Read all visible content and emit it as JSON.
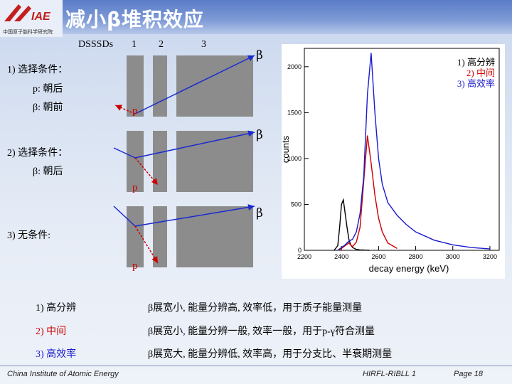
{
  "header": {
    "title": "减小β堆积效应",
    "org_text": "中国原子能科学研究院"
  },
  "detectors": {
    "label": "DSSSDs",
    "numbers": [
      "1",
      "2",
      "3"
    ]
  },
  "conditions": {
    "c1_title": "1) 选择条件：",
    "c1_p": "p: 朝后",
    "c1_beta": "β: 朝前",
    "c2_title": "2) 选择条件：",
    "c2_beta": "β: 朝后",
    "c3_title": "3) 无条件:"
  },
  "particles": {
    "beta": "β",
    "p": "p"
  },
  "chart_data": {
    "type": "line",
    "xlabel": "decay energy (keV)",
    "ylabel": "counts",
    "xlim": [
      2200,
      3250
    ],
    "ylim": [
      0,
      2200
    ],
    "xticks": [
      "2200",
      "2400",
      "2600",
      "2800",
      "3000",
      "3200"
    ],
    "yticks": [
      "0",
      "500",
      "1000",
      "1500",
      "2000"
    ],
    "legend": [
      "1) 高分辨",
      "2) 中间",
      "3) 高效率"
    ],
    "legend_colors": [
      "#000000",
      "#cc0000",
      "#1a1acc"
    ],
    "series": [
      {
        "name": "1) 高分辨",
        "color": "#000000",
        "x": [
          2360,
          2380,
          2390,
          2400,
          2410,
          2420,
          2430,
          2440,
          2450,
          2460,
          2480,
          2500,
          2550
        ],
        "y": [
          0,
          50,
          250,
          500,
          550,
          400,
          250,
          120,
          60,
          30,
          10,
          5,
          0
        ]
      },
      {
        "name": "2) 中间",
        "color": "#cc0000",
        "x": [
          2380,
          2400,
          2420,
          2440,
          2460,
          2480,
          2500,
          2520,
          2540,
          2560,
          2580,
          2600,
          2620,
          2650,
          2700
        ],
        "y": [
          0,
          20,
          50,
          80,
          40,
          90,
          250,
          750,
          1250,
          950,
          600,
          350,
          200,
          80,
          20
        ]
      },
      {
        "name": "3) 高效率",
        "color": "#1a1acc",
        "x": [
          2380,
          2400,
          2420,
          2440,
          2460,
          2480,
          2500,
          2520,
          2540,
          2560,
          2580,
          2600,
          2620,
          2650,
          2700,
          2750,
          2800,
          2900,
          3000,
          3100,
          3200
        ],
        "y": [
          0,
          30,
          60,
          100,
          120,
          200,
          400,
          800,
          1700,
          2150,
          1500,
          1000,
          720,
          520,
          380,
          280,
          200,
          110,
          60,
          30,
          15
        ]
      }
    ]
  },
  "summary": [
    {
      "label": "1) 高分辨",
      "color": "#000000",
      "desc": "β展宽小, 能量分辨高, 效率低，用于质子能量测量"
    },
    {
      "label": "2) 中间",
      "color": "#cc0000",
      "desc": "β展宽小, 能量分辨一般, 效率一般，用于p-γ符合测量"
    },
    {
      "label": "3) 高效率",
      "color": "#1a1acc",
      "desc": "β展宽大, 能量分辨低, 效率高，用于分支比、半衰期测量"
    }
  ],
  "footer": {
    "left": "China Institute of Atomic Energy",
    "center": "HIRFL-RIBLL 1",
    "right": "Page 18"
  }
}
